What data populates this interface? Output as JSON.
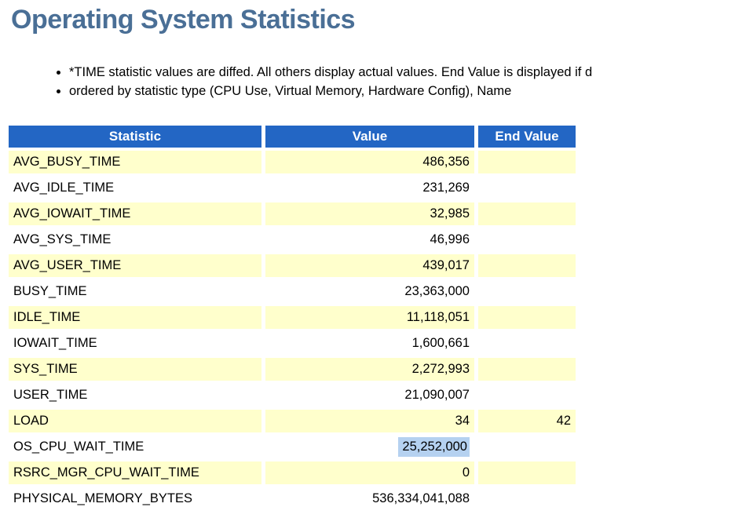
{
  "page": {
    "title": "Operating System Statistics"
  },
  "notes": [
    "*TIME statistic values are diffed. All others display actual values. End Value is displayed if d",
    "ordered by statistic type (CPU Use, Virtual Memory, Hardware Config), Name"
  ],
  "table": {
    "columns": [
      "Statistic",
      "Value",
      "End Value"
    ],
    "rows": [
      {
        "statistic": "AVG_BUSY_TIME",
        "value": "486,356",
        "end_value": "",
        "value_selected": false
      },
      {
        "statistic": "AVG_IDLE_TIME",
        "value": "231,269",
        "end_value": "",
        "value_selected": false
      },
      {
        "statistic": "AVG_IOWAIT_TIME",
        "value": "32,985",
        "end_value": "",
        "value_selected": false
      },
      {
        "statistic": "AVG_SYS_TIME",
        "value": "46,996",
        "end_value": "",
        "value_selected": false
      },
      {
        "statistic": "AVG_USER_TIME",
        "value": "439,017",
        "end_value": "",
        "value_selected": false
      },
      {
        "statistic": "BUSY_TIME",
        "value": "23,363,000",
        "end_value": "",
        "value_selected": false
      },
      {
        "statistic": "IDLE_TIME",
        "value": "11,118,051",
        "end_value": "",
        "value_selected": false
      },
      {
        "statistic": "IOWAIT_TIME",
        "value": "1,600,661",
        "end_value": "",
        "value_selected": false
      },
      {
        "statistic": "SYS_TIME",
        "value": "2,272,993",
        "end_value": "",
        "value_selected": false
      },
      {
        "statistic": "USER_TIME",
        "value": "21,090,007",
        "end_value": "",
        "value_selected": false
      },
      {
        "statistic": "LOAD",
        "value": "34",
        "end_value": "42",
        "value_selected": false
      },
      {
        "statistic": "OS_CPU_WAIT_TIME",
        "value": "25,252,000",
        "end_value": "",
        "value_selected": true
      },
      {
        "statistic": "RSRC_MGR_CPU_WAIT_TIME",
        "value": "0",
        "end_value": "",
        "value_selected": false
      },
      {
        "statistic": "PHYSICAL_MEMORY_BYTES",
        "value": "536,334,041,088",
        "end_value": "",
        "value_selected": false
      }
    ]
  },
  "colors": {
    "title_color": "#4A6F96",
    "header_bg": "#2366C4",
    "header_fg": "#FFFFFF",
    "row_alt_bg": "#FFFFCC",
    "selection_bg": "#B5D1F0"
  }
}
